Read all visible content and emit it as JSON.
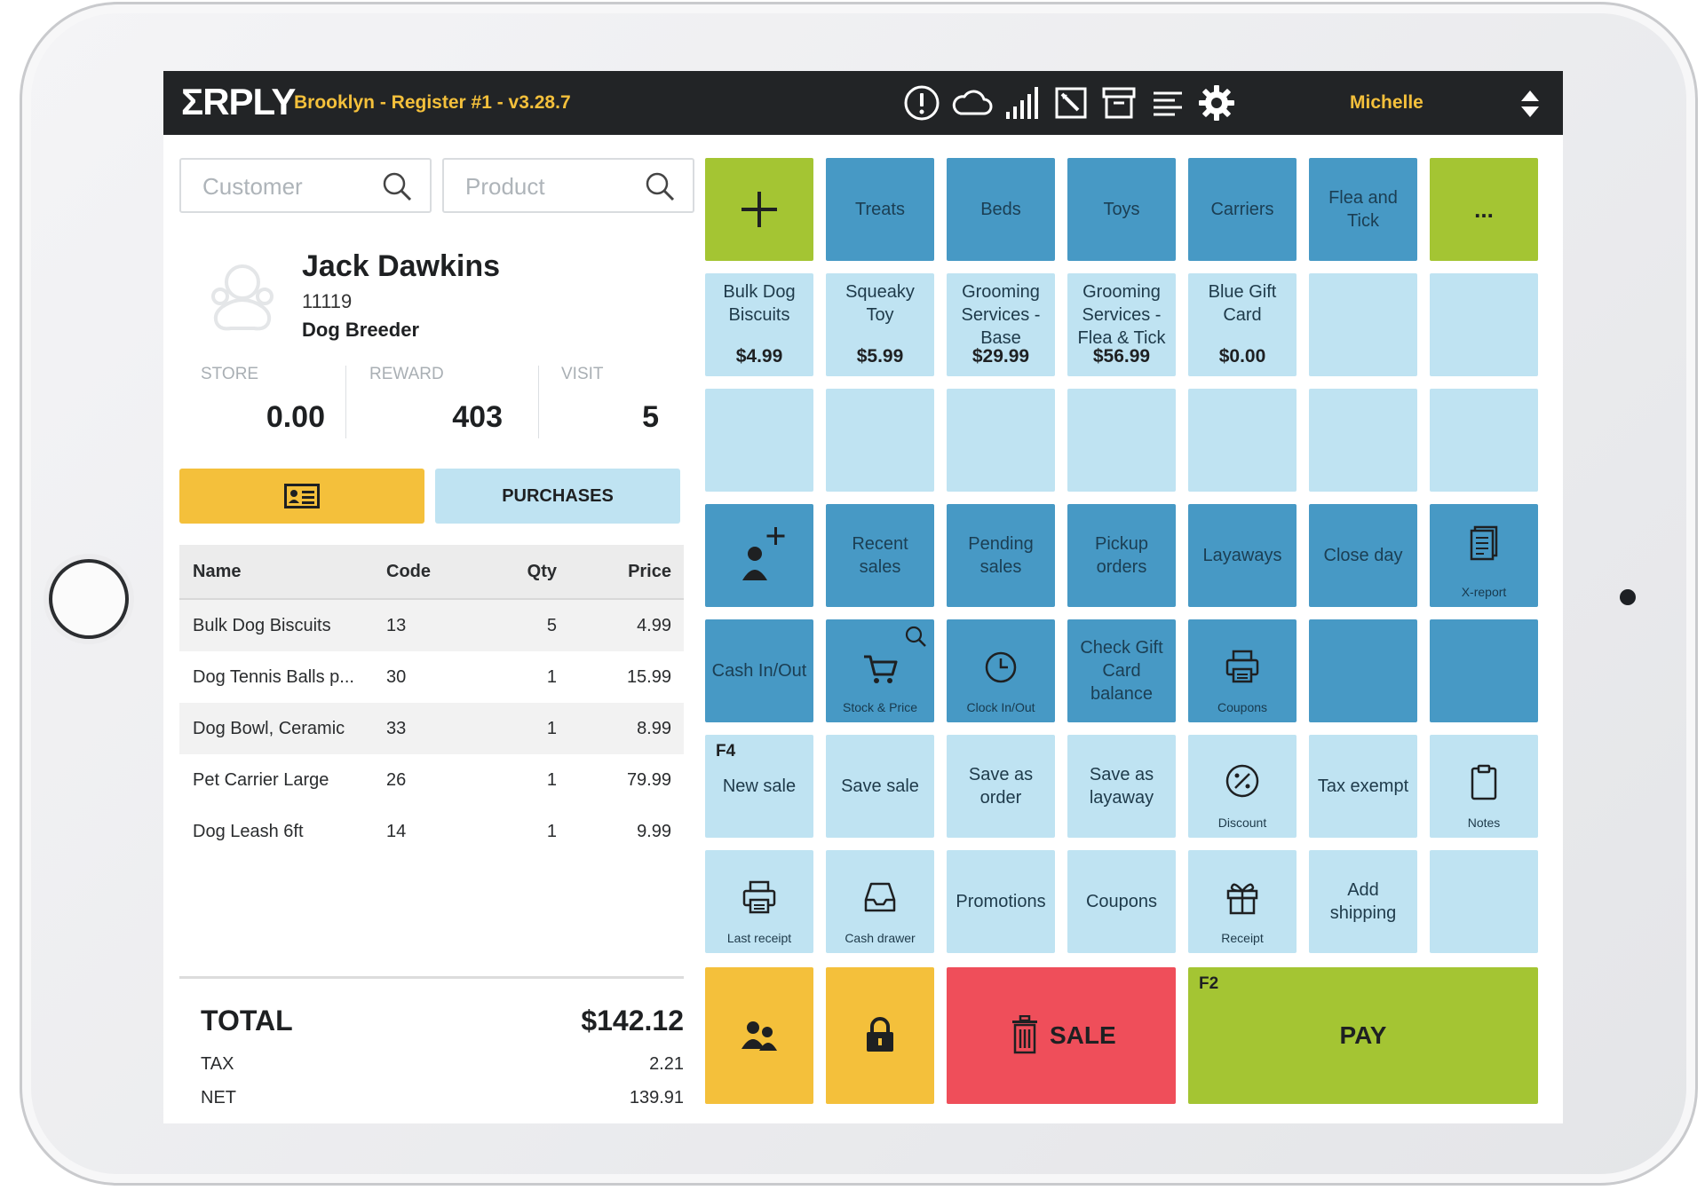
{
  "app": {
    "logo": "ΣRPLY",
    "register_title": "Brooklyn - Register #1 - v3.28.7",
    "user": "Michelle"
  },
  "toolbar_icons": [
    "alert-icon",
    "cloud-icon",
    "signal-icon",
    "edit-icon",
    "archive-icon",
    "list-icon",
    "settings-icon"
  ],
  "search": {
    "customer_placeholder": "Customer",
    "product_placeholder": "Product"
  },
  "customer": {
    "name": "Jack Dawkins",
    "code": "11119",
    "group": "Dog Breeder",
    "stats": [
      {
        "label": "STORE",
        "value": "0.00"
      },
      {
        "label": "REWARD",
        "value": "403"
      },
      {
        "label": "VISIT",
        "value": "5"
      }
    ],
    "purchases_label": "PURCHASES"
  },
  "cart": {
    "columns": {
      "name": "Name",
      "code": "Code",
      "qty": "Qty",
      "price": "Price"
    },
    "rows": [
      {
        "name": "Bulk Dog Biscuits",
        "code": "13",
        "qty": "5",
        "price": "4.99"
      },
      {
        "name": "Dog Tennis Balls p...",
        "code": "30",
        "qty": "1",
        "price": "15.99"
      },
      {
        "name": "Dog Bowl, Ceramic",
        "code": "33",
        "qty": "1",
        "price": "8.99"
      },
      {
        "name": "Pet Carrier Large",
        "code": "26",
        "qty": "1",
        "price": "79.99"
      },
      {
        "name": "Dog Leash 6ft",
        "code": "14",
        "qty": "1",
        "price": "9.99"
      }
    ]
  },
  "totals": {
    "total_label": "TOTAL",
    "total_value": "$142.12",
    "tax_label": "TAX",
    "tax_value": "2.21",
    "net_label": "NET",
    "net_value": "139.91"
  },
  "categories": {
    "more": "...",
    "items": [
      "Treats",
      "Beds",
      "Toys",
      "Carriers",
      "Flea and Tick"
    ]
  },
  "products": [
    {
      "name": "Bulk Dog Biscuits",
      "price": "$4.99"
    },
    {
      "name": "Squeaky Toy",
      "price": "$5.99"
    },
    {
      "name": "Grooming Services - Base",
      "price": "$29.99"
    },
    {
      "name": "Grooming Services - Flea & Tick",
      "price": "$56.99"
    },
    {
      "name": "Blue Gift Card",
      "price": "$0.00"
    }
  ],
  "functions": {
    "recent_sales": "Recent sales",
    "pending_sales": "Pending sales",
    "pickup_orders": "Pickup orders",
    "layaways": "Layaways",
    "close_day": "Close day",
    "x_report": "X-report",
    "cash_in_out": "Cash In/Out",
    "stock_price": "Stock & Price",
    "clock_in_out": "Clock In/Out",
    "check_gift_card": "Check Gift Card balance",
    "coupons_icon": "Coupons",
    "new_sale_key": "F4",
    "new_sale": "New sale",
    "save_sale": "Save sale",
    "save_as_order": "Save as order",
    "save_as_layaway": "Save as layaway",
    "discount": "Discount",
    "tax_exempt": "Tax exempt",
    "notes": "Notes",
    "last_receipt": "Last receipt",
    "cash_drawer": "Cash drawer",
    "promotions": "Promotions",
    "coupons": "Coupons",
    "receipt": "Receipt",
    "add_shipping": "Add shipping",
    "sale": "SALE",
    "pay_key": "F2",
    "pay": "PAY"
  },
  "colors": {
    "topbar": "#222426",
    "accent_yellow": "#f4c03b",
    "tile_dark": "#4799c5",
    "tile_light": "#bfe3f2",
    "green": "#a4c533",
    "red": "#ef4e5a"
  }
}
